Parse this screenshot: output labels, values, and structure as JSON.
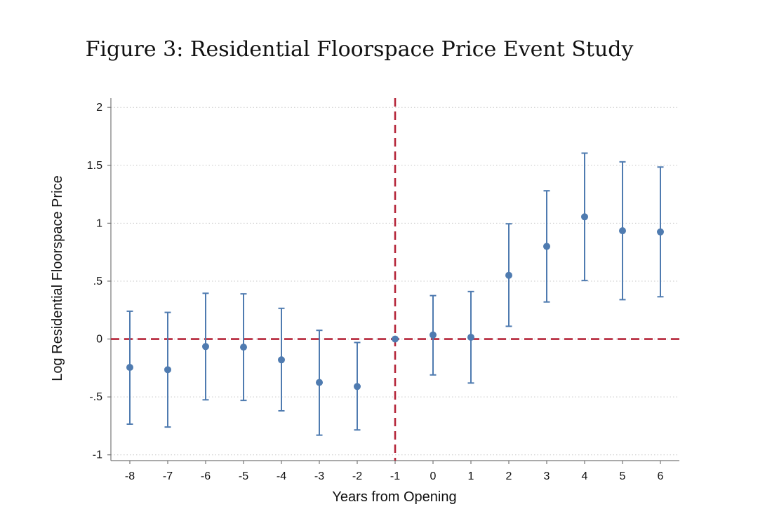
{
  "figure_title": "Figure 3: Residential Floorspace Price Event Study",
  "chart_data": {
    "type": "scatter",
    "xlabel": "Years from Opening",
    "ylabel": "Log Residential Floorspace Price",
    "xlim": [
      -8.5,
      6.5
    ],
    "ylim": [
      -1.05,
      2.08
    ],
    "x_ticks": [
      -8,
      -7,
      -6,
      -5,
      -4,
      -3,
      -2,
      -1,
      0,
      1,
      2,
      3,
      4,
      5,
      6
    ],
    "x_tick_labels": [
      "-8",
      "-7",
      "-6",
      "-5",
      "-4",
      "-3",
      "-2",
      "-1",
      "0",
      "1",
      "2",
      "3",
      "4",
      "5",
      "6"
    ],
    "y_ticks": [
      -1,
      -0.5,
      0,
      0.5,
      1,
      1.5,
      2
    ],
    "y_tick_labels": [
      "-1",
      "-.5",
      "0",
      ".5",
      "1",
      "1.5",
      "2"
    ],
    "grid": true,
    "points": [
      {
        "x": -8,
        "y": -0.245,
        "lo": -0.735,
        "hi": 0.24
      },
      {
        "x": -7,
        "y": -0.265,
        "lo": -0.76,
        "hi": 0.23
      },
      {
        "x": -6,
        "y": -0.065,
        "lo": -0.525,
        "hi": 0.395
      },
      {
        "x": -5,
        "y": -0.07,
        "lo": -0.53,
        "hi": 0.39
      },
      {
        "x": -4,
        "y": -0.18,
        "lo": -0.62,
        "hi": 0.265
      },
      {
        "x": -3,
        "y": -0.375,
        "lo": -0.83,
        "hi": 0.075
      },
      {
        "x": -2,
        "y": -0.41,
        "lo": -0.785,
        "hi": -0.03
      },
      {
        "x": -1,
        "y": 0.0,
        "lo": 0.0,
        "hi": 0.0
      },
      {
        "x": 0,
        "y": 0.035,
        "lo": -0.31,
        "hi": 0.375
      },
      {
        "x": 1,
        "y": 0.015,
        "lo": -0.38,
        "hi": 0.41
      },
      {
        "x": 2,
        "y": 0.55,
        "lo": 0.11,
        "hi": 0.995
      },
      {
        "x": 3,
        "y": 0.8,
        "lo": 0.32,
        "hi": 1.28
      },
      {
        "x": 4,
        "y": 1.055,
        "lo": 0.505,
        "hi": 1.605
      },
      {
        "x": 5,
        "y": 0.935,
        "lo": 0.34,
        "hi": 1.53
      },
      {
        "x": 6,
        "y": 0.925,
        "lo": 0.365,
        "hi": 1.485
      }
    ],
    "reference_lines": {
      "horizontal_y": 0,
      "vertical_x": -1
    },
    "colors": {
      "points": "#4f7bb0",
      "reference": "#b5263a"
    }
  }
}
